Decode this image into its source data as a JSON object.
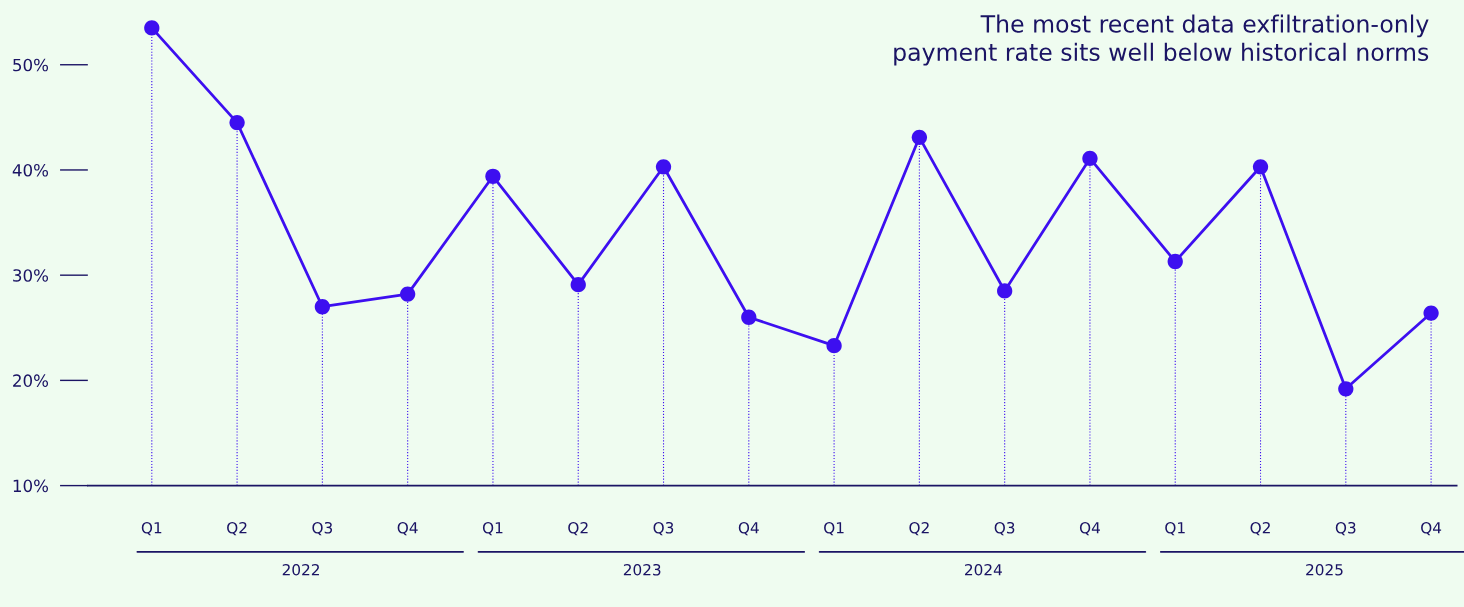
{
  "chart_data": {
    "type": "line",
    "title": "The most recent data exfiltration-only\npayment rate sits well below historical norms",
    "categories": [
      "Q1",
      "Q2",
      "Q3",
      "Q4",
      "Q1",
      "Q2",
      "Q3",
      "Q4",
      "Q1",
      "Q2",
      "Q3",
      "Q4",
      "Q1",
      "Q2",
      "Q3",
      "Q4"
    ],
    "series": [
      {
        "color": "#3d0ff0",
        "values": [
          53.5,
          44.5,
          27.0,
          28.2,
          39.4,
          29.1,
          40.3,
          26.0,
          23.3,
          43.1,
          28.5,
          41.1,
          31.3,
          40.3,
          19.2,
          26.4
        ]
      }
    ],
    "annotations": [
      "2022",
      "2023",
      "2024",
      "2025"
    ],
    "ylim": [
      10,
      55
    ],
    "yticks": [
      {
        "value": 10,
        "label": "10%"
      },
      {
        "value": 20,
        "label": "20%"
      },
      {
        "value": 30,
        "label": "30%"
      },
      {
        "value": 40,
        "label": "40%"
      },
      {
        "value": 50,
        "label": "50%"
      }
    ],
    "marker": "circle",
    "line_style": "solid",
    "grid": "x",
    "legend": false
  }
}
